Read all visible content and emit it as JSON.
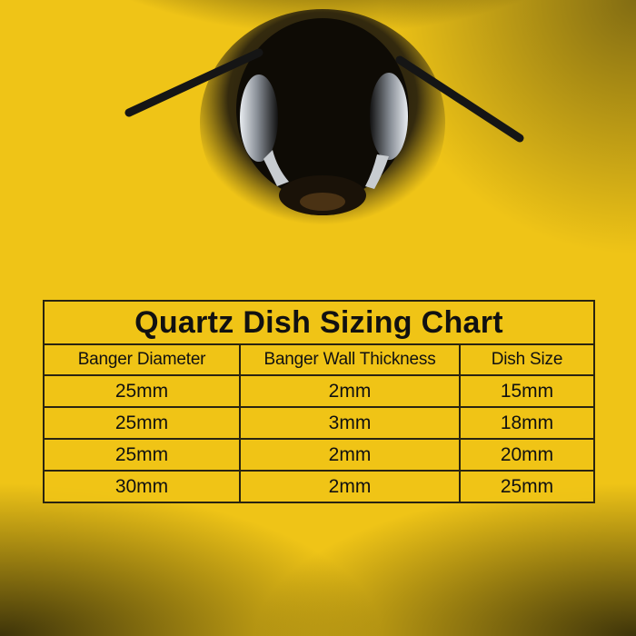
{
  "table": {
    "title": "Quartz Dish Sizing Chart",
    "headers": [
      "Banger Diameter",
      "Banger Wall Thickness",
      "Dish Size"
    ],
    "rows": [
      [
        "25mm",
        "2mm",
        "15mm"
      ],
      [
        "25mm",
        "3mm",
        "18mm"
      ],
      [
        "25mm",
        "2mm",
        "20mm"
      ],
      [
        "30mm",
        "2mm",
        "25mm"
      ]
    ]
  },
  "colors": {
    "background": "#efc417",
    "smoke": "#1a1608",
    "text": "#111111"
  },
  "image": {
    "subject": "bee-head-icon"
  }
}
